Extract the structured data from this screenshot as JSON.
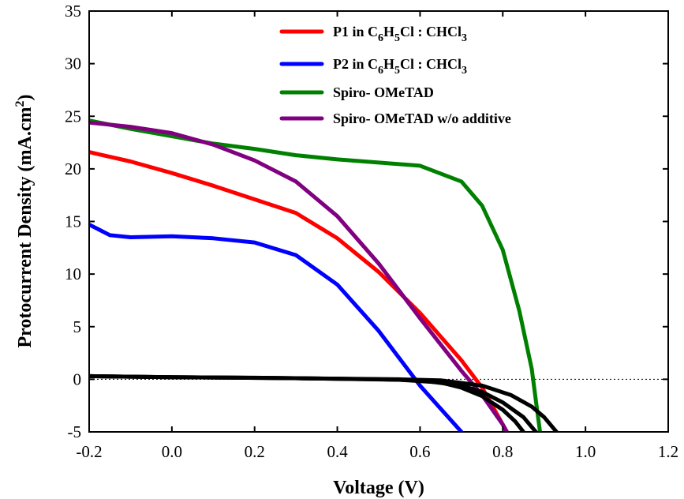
{
  "chart_data": {
    "type": "line",
    "title": "",
    "xlabel": "Voltage (V)",
    "ylabel_main": "Protocurrent Density (mA.cm",
    "ylabel_sup": "2",
    "ylabel_close": ")",
    "xlim": [
      -0.2,
      1.2
    ],
    "ylim": [
      -5,
      35
    ],
    "x_ticks": [
      -0.2,
      0.0,
      0.2,
      0.4,
      0.6,
      0.8,
      1.0,
      1.2
    ],
    "x_tick_labels": [
      "-0.2",
      "0.0",
      "0.2",
      "0.4",
      "0.6",
      "0.8",
      "1.0",
      "1.2"
    ],
    "y_ticks": [
      -5,
      0,
      5,
      10,
      15,
      20,
      25,
      30,
      35
    ],
    "y_tick_labels": [
      "-5",
      "0",
      "5",
      "10",
      "15",
      "20",
      "25",
      "30",
      "35"
    ],
    "zero_reference_line": true,
    "legend_position": "top-right",
    "series": [
      {
        "legend": [
          {
            "t": "P1 in C"
          },
          {
            "t": "6",
            "sub": true
          },
          {
            "t": "H"
          },
          {
            "t": "5",
            "sub": true
          },
          {
            "t": "Cl : CHCl"
          },
          {
            "t": "3",
            "sub": true
          }
        ],
        "color": "#ff0000",
        "points": [
          [
            -0.2,
            21.6
          ],
          [
            -0.1,
            20.7
          ],
          [
            0.0,
            19.6
          ],
          [
            0.1,
            18.4
          ],
          [
            0.2,
            17.1
          ],
          [
            0.3,
            15.8
          ],
          [
            0.4,
            13.4
          ],
          [
            0.5,
            10.2
          ],
          [
            0.6,
            6.3
          ],
          [
            0.7,
            1.8
          ],
          [
            0.75,
            -0.8
          ],
          [
            0.8,
            -4.3
          ],
          [
            0.81,
            -5.0
          ]
        ]
      },
      {
        "legend": [
          {
            "t": "P2 in C"
          },
          {
            "t": "6",
            "sub": true
          },
          {
            "t": "H"
          },
          {
            "t": "5",
            "sub": true
          },
          {
            "t": "Cl : CHCl"
          },
          {
            "t": "3",
            "sub": true
          }
        ],
        "color": "#0000ff",
        "points": [
          [
            -0.2,
            14.7
          ],
          [
            -0.15,
            13.7
          ],
          [
            -0.1,
            13.5
          ],
          [
            0.0,
            13.6
          ],
          [
            0.1,
            13.4
          ],
          [
            0.2,
            13.0
          ],
          [
            0.3,
            11.8
          ],
          [
            0.4,
            9.0
          ],
          [
            0.5,
            4.6
          ],
          [
            0.55,
            2.0
          ],
          [
            0.6,
            -0.6
          ],
          [
            0.65,
            -2.8
          ],
          [
            0.7,
            -5.0
          ]
        ]
      },
      {
        "legend": [
          {
            "t": "Spiro- OMeTAD"
          }
        ],
        "color": "#008000",
        "points": [
          [
            -0.2,
            24.6
          ],
          [
            -0.1,
            23.8
          ],
          [
            0.0,
            23.1
          ],
          [
            0.1,
            22.4
          ],
          [
            0.2,
            21.9
          ],
          [
            0.3,
            21.3
          ],
          [
            0.4,
            20.9
          ],
          [
            0.5,
            20.6
          ],
          [
            0.6,
            20.3
          ],
          [
            0.7,
            18.8
          ],
          [
            0.75,
            16.5
          ],
          [
            0.8,
            12.3
          ],
          [
            0.84,
            6.5
          ],
          [
            0.87,
            1.0
          ],
          [
            0.88,
            -2.0
          ],
          [
            0.89,
            -5.0
          ]
        ]
      },
      {
        "legend": [
          {
            "t": "Spiro- OMeTAD w/o additive"
          }
        ],
        "color": "#800080",
        "points": [
          [
            -0.2,
            24.4
          ],
          [
            -0.1,
            24.0
          ],
          [
            0.0,
            23.4
          ],
          [
            0.1,
            22.3
          ],
          [
            0.2,
            20.8
          ],
          [
            0.3,
            18.8
          ],
          [
            0.4,
            15.5
          ],
          [
            0.5,
            11.0
          ],
          [
            0.6,
            5.8
          ],
          [
            0.7,
            0.8
          ],
          [
            0.75,
            -1.5
          ],
          [
            0.8,
            -4.3
          ],
          [
            0.81,
            -5.0
          ]
        ]
      },
      {
        "legend": [],
        "color": "#000000",
        "points": [
          [
            -0.2,
            0.3
          ],
          [
            0.0,
            0.2
          ],
          [
            0.2,
            0.15
          ],
          [
            0.4,
            0.05
          ],
          [
            0.55,
            -0.05
          ],
          [
            0.65,
            -0.3
          ],
          [
            0.7,
            -0.8
          ],
          [
            0.75,
            -1.6
          ],
          [
            0.8,
            -2.9
          ],
          [
            0.83,
            -4.0
          ],
          [
            0.85,
            -5.0
          ]
        ]
      },
      {
        "legend": [],
        "color": "#000000",
        "points": [
          [
            -0.2,
            0.3
          ],
          [
            0.0,
            0.2
          ],
          [
            0.3,
            0.1
          ],
          [
            0.5,
            0.0
          ],
          [
            0.6,
            -0.1
          ],
          [
            0.7,
            -0.6
          ],
          [
            0.75,
            -1.2
          ],
          [
            0.8,
            -2.2
          ],
          [
            0.85,
            -3.6
          ],
          [
            0.88,
            -5.0
          ]
        ]
      },
      {
        "legend": [],
        "color": "#000000",
        "points": [
          [
            -0.2,
            0.3
          ],
          [
            0.0,
            0.2
          ],
          [
            0.3,
            0.1
          ],
          [
            0.55,
            0.0
          ],
          [
            0.65,
            -0.1
          ],
          [
            0.75,
            -0.6
          ],
          [
            0.82,
            -1.5
          ],
          [
            0.87,
            -2.6
          ],
          [
            0.9,
            -3.6
          ],
          [
            0.93,
            -5.0
          ]
        ]
      }
    ]
  }
}
